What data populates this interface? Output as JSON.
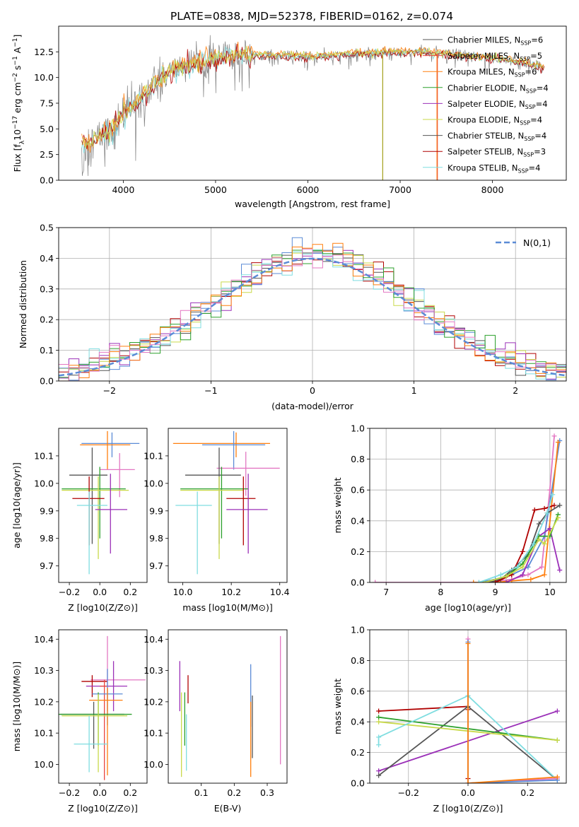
{
  "figure_title": "PLATE=0838, MJD=52378, FIBERID=0162, z=0.074",
  "colors": {
    "chabrier_miles": "#1f77b4",
    "salpeter_miles": "#e8463f",
    "kroupa_miles": "#ff7f0e",
    "chabrier_elodie": "#2ca02c",
    "salpeter_elodie": "#9b30b8",
    "kroupa_elodie": "#c9d94a",
    "chabrier_stelib": "#555555",
    "salpeter_stelib": "#b00000",
    "kroupa_stelib": "#7fdde0",
    "pink": "#e377c2",
    "blue": "#5b8bd6",
    "data": "#808080",
    "normal": "#5b8bd6"
  },
  "chart_data": [
    {
      "type": "line",
      "id": "spectrum",
      "xlabel": "wavelength [Angstrom, rest frame]",
      "ylabel_parts": [
        "Flux [f",
        "λ",
        "10",
        "−17",
        " erg cm",
        "−2",
        " s",
        "−1",
        " A",
        "−1",
        "]"
      ],
      "xlim": [
        3300,
        8800
      ],
      "ylim": [
        0,
        15
      ],
      "xticks": [
        "4000",
        "5000",
        "6000",
        "7000",
        "8000"
      ],
      "yticks": [
        "0.0",
        "2.5",
        "5.0",
        "7.5",
        "10.0",
        "12.5"
      ],
      "envelope_x": [
        3550,
        3700,
        3900,
        4000,
        4100,
        4200,
        4300,
        4400,
        4500,
        4700,
        4900,
        5100,
        5300,
        5500,
        5800,
        6100,
        6400,
        6600,
        6900,
        7200,
        7500,
        7800,
        8100,
        8350,
        8550
      ],
      "envelope_y": [
        3.5,
        4.0,
        5.0,
        6.5,
        7.2,
        8.2,
        9.0,
        9.8,
        10.6,
        11.2,
        11.6,
        12.0,
        12.2,
        12.2,
        12.1,
        12.0,
        12.2,
        12.3,
        12.5,
        12.5,
        12.3,
        12.0,
        11.8,
        11.4,
        11.0
      ],
      "legend": [
        {
          "label": "Chabrier MILES, N",
          "sub": "SSP",
          "tail": "=6",
          "color_key": "chabrier_stelib"
        },
        {
          "label": "Salpeter MILES, N",
          "sub": "SSP",
          "tail": "=5",
          "color_key": "salpeter_miles"
        },
        {
          "label": "Kroupa MILES, N",
          "sub": "SSP",
          "tail": "=6",
          "color_key": "kroupa_miles"
        },
        {
          "label": "Chabrier ELODIE, N",
          "sub": "SSP",
          "tail": "=4",
          "color_key": "chabrier_elodie"
        },
        {
          "label": "Salpeter ELODIE, N",
          "sub": "SSP",
          "tail": "=4",
          "color_key": "salpeter_elodie"
        },
        {
          "label": "Kroupa ELODIE, N",
          "sub": "SSP",
          "tail": "=4",
          "color_key": "kroupa_elodie"
        },
        {
          "label": "Chabrier STELIB, N",
          "sub": "SSP",
          "tail": "=4",
          "color_key": "chabrier_stelib"
        },
        {
          "label": "Salpeter STELIB, N",
          "sub": "SSP",
          "tail": "=3",
          "color_key": "salpeter_stelib"
        },
        {
          "label": "Kroupa STELIB, N",
          "sub": "SSP",
          "tail": "=4",
          "color_key": "kroupa_stelib"
        }
      ]
    },
    {
      "type": "line",
      "id": "residuals",
      "xlabel": "(data-model)/error",
      "ylabel": "Normed distribution",
      "xlim": [
        -2.5,
        2.5
      ],
      "ylim": [
        0,
        0.5
      ],
      "xticks": [
        "−2",
        "−1",
        "0",
        "1",
        "2"
      ],
      "yticks": [
        "0.0",
        "0.1",
        "0.2",
        "0.3",
        "0.4",
        "0.5"
      ],
      "grid": true,
      "bin_width": 0.1,
      "legend": "N(0,1)",
      "legend_position": "top-right",
      "normal_mean": 0,
      "normal_sigma": 1
    },
    {
      "type": "scatter",
      "id": "age_vs_Z",
      "xlabel": "Z [log10(Z/Z⊙)]",
      "ylabel": "age [log10(age/yr)]",
      "xlim": [
        -0.27,
        0.31
      ],
      "ylim": [
        9.64,
        10.2
      ],
      "xticks": [
        "−0.2",
        "0.0",
        "0.2"
      ],
      "yticks": [
        "9.7",
        "9.8",
        "9.9",
        "10.0",
        "10.1"
      ],
      "points": [
        {
          "x": 0.08,
          "y": 10.145,
          "xerr": [
            0.2,
            0.18
          ],
          "yerr": [
            0.05,
            0.04
          ],
          "c": "blue"
        },
        {
          "x": 0.05,
          "y": 10.14,
          "xerr": [
            0.18,
            0.15
          ],
          "yerr": [
            0.09,
            0.05
          ],
          "c": "kroupa_miles"
        },
        {
          "x": 0.13,
          "y": 10.05,
          "xerr": [
            0.13,
            0.1
          ],
          "yerr": [
            0.1,
            0.06
          ],
          "c": "pink"
        },
        {
          "x": -0.05,
          "y": 10.03,
          "xerr": [
            0.15,
            0.1
          ],
          "yerr": [
            0.25,
            0.1
          ],
          "c": "chabrier_stelib"
        },
        {
          "x": 0.0,
          "y": 9.98,
          "xerr": [
            0.25,
            0.17
          ],
          "yerr": [
            0.18,
            0.08
          ],
          "c": "chabrier_elodie"
        },
        {
          "x": -0.01,
          "y": 9.975,
          "xerr": [
            0.24,
            0.2
          ],
          "yerr": [
            0.25,
            0.05
          ],
          "c": "kroupa_elodie"
        },
        {
          "x": -0.07,
          "y": 9.945,
          "xerr": [
            0.11,
            0.1
          ],
          "yerr": [
            0.17,
            0.08
          ],
          "c": "salpeter_stelib"
        },
        {
          "x": 0.07,
          "y": 9.905,
          "xerr": [
            0.1,
            0.11
          ],
          "yerr": [
            0.16,
            0.13
          ],
          "c": "salpeter_elodie"
        },
        {
          "x": -0.07,
          "y": 9.92,
          "xerr": [
            0.08,
            0.12
          ],
          "yerr": [
            0.25,
            0.05
          ],
          "c": "kroupa_stelib"
        }
      ]
    },
    {
      "type": "scatter",
      "id": "age_vs_mass",
      "xlabel": "mass [log10(M/M⊙)]",
      "ylabel": "",
      "xlim": [
        9.94,
        10.43
      ],
      "ylim": [
        9.64,
        10.2
      ],
      "xticks": [
        "10.0",
        "10.2",
        "10.4"
      ],
      "yticks": [
        "9.7",
        "9.8",
        "9.9",
        "10.0",
        "10.1"
      ],
      "points": [
        {
          "x": 10.22,
          "y": 10.145,
          "xerr": [
            0.26,
            0.14
          ],
          "yerr": [
            0.05,
            0.04
          ],
          "c": "kroupa_miles"
        },
        {
          "x": 10.21,
          "y": 10.14,
          "xerr": [
            0.13,
            0.13
          ],
          "yerr": [
            0.09,
            0.05
          ],
          "c": "blue"
        },
        {
          "x": 10.26,
          "y": 10.055,
          "xerr": [
            0.12,
            0.14
          ],
          "yerr": [
            0.1,
            0.06
          ],
          "c": "pink"
        },
        {
          "x": 10.15,
          "y": 10.03,
          "xerr": [
            0.14,
            0.09
          ],
          "yerr": [
            0.25,
            0.1
          ],
          "c": "chabrier_stelib"
        },
        {
          "x": 10.16,
          "y": 9.98,
          "xerr": [
            0.17,
            0.11
          ],
          "yerr": [
            0.18,
            0.08
          ],
          "c": "chabrier_elodie"
        },
        {
          "x": 10.15,
          "y": 9.975,
          "xerr": [
            0.16,
            0.1
          ],
          "yerr": [
            0.25,
            0.05
          ],
          "c": "kroupa_elodie"
        },
        {
          "x": 10.25,
          "y": 9.945,
          "xerr": [
            0.07,
            0.05
          ],
          "yerr": [
            0.17,
            0.08
          ],
          "c": "salpeter_stelib"
        },
        {
          "x": 10.27,
          "y": 9.905,
          "xerr": [
            0.09,
            0.08
          ],
          "yerr": [
            0.16,
            0.13
          ],
          "c": "salpeter_elodie"
        },
        {
          "x": 10.06,
          "y": 9.92,
          "xerr": [
            0.09,
            0.06
          ],
          "yerr": [
            0.25,
            0.05
          ],
          "c": "kroupa_stelib"
        }
      ]
    },
    {
      "type": "line",
      "id": "massweight_vs_age",
      "xlabel": "age [log10(age/yr)]",
      "ylabel": "mass weight",
      "xlim": [
        6.7,
        10.3
      ],
      "ylim": [
        0,
        1
      ],
      "xticks": [
        "7",
        "8",
        "9",
        "10"
      ],
      "yticks": [
        "0.0",
        "0.2",
        "0.4",
        "0.6",
        "0.8",
        "1.0"
      ],
      "grid": true,
      "series": [
        {
          "c": "pink",
          "x": [
            6.8,
            8.8,
            9.3,
            9.6,
            9.85,
            10.0,
            10.08
          ],
          "y": [
            0.0,
            0.0,
            0.02,
            0.05,
            0.1,
            0.6,
            0.95
          ]
        },
        {
          "c": "blue",
          "x": [
            8.7,
            9.0,
            9.3,
            9.6,
            9.9,
            10.18
          ],
          "y": [
            0.0,
            0.02,
            0.05,
            0.1,
            0.3,
            0.92
          ]
        },
        {
          "c": "kroupa_miles",
          "x": [
            8.6,
            9.0,
            9.3,
            9.65,
            9.9,
            10.15
          ],
          "y": [
            0.0,
            0.0,
            0.01,
            0.02,
            0.05,
            0.91
          ]
        },
        {
          "c": "chabrier_stelib",
          "x": [
            8.9,
            9.1,
            9.3,
            9.6,
            9.8,
            9.95,
            10.18
          ],
          "y": [
            0.0,
            0.02,
            0.08,
            0.18,
            0.38,
            0.45,
            0.5
          ]
        },
        {
          "c": "salpeter_stelib",
          "x": [
            9.0,
            9.3,
            9.5,
            9.72,
            9.9,
            10.08
          ],
          "y": [
            0.0,
            0.05,
            0.2,
            0.47,
            0.48,
            0.5
          ]
        },
        {
          "c": "salpeter_elodie",
          "x": [
            9.2,
            9.5,
            9.8,
            10.0,
            10.18
          ],
          "y": [
            0.0,
            0.05,
            0.3,
            0.35,
            0.08
          ]
        },
        {
          "c": "chabrier_elodie",
          "x": [
            8.8,
            9.2,
            9.5,
            9.8,
            10.0,
            10.15
          ],
          "y": [
            0.0,
            0.04,
            0.12,
            0.3,
            0.3,
            0.44
          ]
        },
        {
          "c": "kroupa_elodie",
          "x": [
            8.8,
            9.2,
            9.5,
            9.8,
            9.9,
            10.15
          ],
          "y": [
            0.0,
            0.04,
            0.1,
            0.28,
            0.25,
            0.42
          ]
        },
        {
          "c": "kroupa_stelib",
          "x": [
            8.7,
            9.1,
            9.4,
            9.7,
            9.95,
            10.05
          ],
          "y": [
            0.0,
            0.05,
            0.1,
            0.25,
            0.45,
            0.57
          ]
        }
      ]
    },
    {
      "type": "scatter",
      "id": "mass_vs_Z",
      "xlabel": "Z [log10(Z/Z⊙)]",
      "ylabel": "mass [log10(M/M⊙)]",
      "xlim": [
        -0.27,
        0.31
      ],
      "ylim": [
        9.94,
        10.43
      ],
      "xticks": [
        "−0.2",
        "0.0",
        "0.2"
      ],
      "yticks": [
        "10.0",
        "10.1",
        "10.2",
        "10.3",
        "10.4"
      ],
      "points": [
        {
          "x": 0.05,
          "y": 10.27,
          "xerr": [
            0.11,
            0.25
          ],
          "yerr": [
            0.1,
            0.14
          ],
          "c": "pink"
        },
        {
          "x": -0.05,
          "y": 10.265,
          "xerr": [
            0.07,
            0.1
          ],
          "yerr": [
            0.05,
            0.02
          ],
          "c": "salpeter_stelib"
        },
        {
          "x": 0.09,
          "y": 10.25,
          "xerr": [
            0.18,
            0.09
          ],
          "yerr": [
            0.08,
            0.08
          ],
          "c": "salpeter_elodie"
        },
        {
          "x": 0.03,
          "y": 10.25,
          "xerr": [
            0.03,
            0.02
          ],
          "yerr": [
            0.3,
            0.02
          ],
          "c": "salpeter_miles"
        },
        {
          "x": 0.05,
          "y": 10.225,
          "xerr": [
            0.1,
            0.1
          ],
          "yerr": [
            0.1,
            0.08
          ],
          "c": "blue"
        },
        {
          "x": 0.05,
          "y": 10.205,
          "xerr": [
            0.12,
            0.1
          ],
          "yerr": [
            0.24,
            0.04
          ],
          "c": "kroupa_miles"
        },
        {
          "x": -0.04,
          "y": 10.16,
          "xerr": [
            0.22,
            0.2
          ],
          "yerr": [
            0.11,
            0.04
          ],
          "c": "chabrier_stelib"
        },
        {
          "x": -0.01,
          "y": 10.16,
          "xerr": [
            0.26,
            0.22
          ],
          "yerr": [
            0.1,
            0.07
          ],
          "c": "chabrier_elodie"
        },
        {
          "x": -0.01,
          "y": 10.155,
          "xerr": [
            0.24,
            0.19
          ],
          "yerr": [
            0.18,
            0.07
          ],
          "c": "kroupa_elodie"
        },
        {
          "x": -0.07,
          "y": 10.065,
          "xerr": [
            0.1,
            0.12
          ],
          "yerr": [
            0.09,
            0.09
          ],
          "c": "kroupa_stelib"
        }
      ]
    },
    {
      "type": "scatter",
      "id": "mass_vs_ebv",
      "xlabel": "E(B-V)",
      "ylabel": "",
      "xlim": [
        0.0,
        0.36
      ],
      "ylim": [
        9.94,
        10.43
      ],
      "xticks": [
        "0.1",
        "0.2",
        "0.3"
      ],
      "yticks": [
        "10.0",
        "10.1",
        "10.2",
        "10.3",
        "10.4"
      ],
      "points": [
        {
          "x": 0.035,
          "y": 10.27,
          "yerr": [
            0.1,
            0.06
          ],
          "c": "salpeter_elodie"
        },
        {
          "x": 0.06,
          "y": 10.245,
          "yerr": [
            0.05,
            0.04
          ],
          "c": "salpeter_stelib"
        },
        {
          "x": 0.04,
          "y": 10.15,
          "yerr": [
            0.19,
            0.08
          ],
          "c": "kroupa_elodie"
        },
        {
          "x": 0.05,
          "y": 10.16,
          "yerr": [
            0.1,
            0.07
          ],
          "c": "chabrier_elodie"
        },
        {
          "x": 0.055,
          "y": 10.08,
          "yerr": [
            0.1,
            0.08
          ],
          "c": "kroupa_stelib"
        },
        {
          "x": 0.25,
          "y": 10.22,
          "yerr": [
            0.1,
            0.1
          ],
          "c": "blue"
        },
        {
          "x": 0.25,
          "y": 10.1,
          "yerr": [
            0.14,
            0.1
          ],
          "c": "kroupa_miles"
        },
        {
          "x": 0.255,
          "y": 10.16,
          "yerr": [
            0.14,
            0.06
          ],
          "c": "chabrier_stelib"
        },
        {
          "x": 0.34,
          "y": 10.2,
          "yerr": [
            0.2,
            0.21
          ],
          "c": "pink"
        }
      ]
    },
    {
      "type": "line",
      "id": "massweight_vs_Z",
      "xlabel": "Z [log10(Z/Z⊙)]",
      "ylabel": "mass weight",
      "xlim": [
        -0.33,
        0.33
      ],
      "ylim": [
        0,
        1
      ],
      "xticks": [
        "−0.2",
        "0.0",
        "0.2"
      ],
      "yticks": [
        "0.0",
        "0.2",
        "0.4",
        "0.6",
        "0.8",
        "1.0"
      ],
      "grid": true,
      "series": [
        {
          "c": "salpeter_stelib",
          "x": [
            -0.3,
            0.0,
            0.0,
            0.0
          ],
          "y": [
            0.47,
            0.5,
            0.48,
            0.03
          ]
        },
        {
          "c": "salpeter_elodie",
          "x": [
            -0.3,
            0.3
          ],
          "y": [
            0.08,
            0.47
          ]
        },
        {
          "c": "chabrier_stelib",
          "x": [
            -0.3,
            0.0,
            0.3
          ],
          "y": [
            0.05,
            0.5,
            0.02
          ]
        },
        {
          "c": "chabrier_elodie",
          "x": [
            -0.3,
            0.3
          ],
          "y": [
            0.43,
            0.28
          ]
        },
        {
          "c": "kroupa_elodie",
          "x": [
            -0.3,
            0.3
          ],
          "y": [
            0.4,
            0.28
          ]
        },
        {
          "c": "kroupa_stelib",
          "x": [
            -0.3,
            -0.3,
            0.0,
            0.3
          ],
          "y": [
            0.25,
            0.3,
            0.57,
            0.02
          ]
        },
        {
          "c": "pink",
          "x": [
            0.0,
            0.0,
            0.3
          ],
          "y": [
            0.94,
            0.0,
            0.03
          ]
        },
        {
          "c": "blue",
          "x": [
            0.0,
            0.0,
            0.3
          ],
          "y": [
            0.92,
            0.0,
            0.02
          ]
        },
        {
          "c": "kroupa_miles",
          "x": [
            0.0,
            0.0,
            0.3
          ],
          "y": [
            0.91,
            0.0,
            0.04
          ]
        }
      ]
    }
  ]
}
